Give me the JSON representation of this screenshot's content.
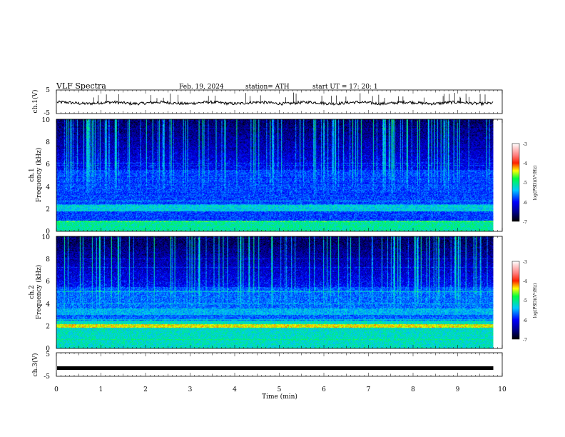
{
  "header": {
    "title": "VLF  Spectra",
    "date": "Feb. 19, 2024",
    "station": "station= ATH",
    "start": "start  UT  =    17: 20: 1"
  },
  "chart_data": [
    {
      "type": "line",
      "ylabel": "ch.1(V)",
      "ylim": [
        -5,
        5
      ],
      "y_ticks": [
        "5",
        "-5"
      ],
      "xlim": [
        0,
        10
      ],
      "signal_level": -0.5,
      "trace_end_min": 9.8,
      "color": "#000000"
    },
    {
      "type": "heatmap",
      "ylabel": "ch.1\nFrequency (kHz)",
      "ylabel_lines": [
        "ch.1",
        "Frequency (kHz)"
      ],
      "ylim": [
        0,
        10
      ],
      "y_ticks": [
        "0",
        "2",
        "4",
        "6",
        "8",
        "10"
      ],
      "xlim": [
        0,
        10
      ],
      "trace_end_min": 9.8,
      "colorbar": {
        "label": "log(PSD)(V²/Hz)",
        "range": [
          -7,
          -3
        ],
        "ticks": [
          "-3",
          "-4",
          "-5",
          "-6",
          "-7"
        ]
      }
    },
    {
      "type": "heatmap",
      "ylabel": "ch.2\nFrequency (kHz)",
      "ylabel_lines": [
        "ch.2",
        "Frequency (kHz)"
      ],
      "ylim": [
        0,
        10
      ],
      "y_ticks": [
        "0",
        "2",
        "4",
        "6",
        "8",
        "10"
      ],
      "xlim": [
        0,
        10
      ],
      "trace_end_min": 9.8,
      "colorbar": {
        "label": "log(PSD)(V²/Hz)",
        "range": [
          -7,
          -3
        ],
        "ticks": [
          "-3",
          "-4",
          "-5",
          "-6",
          "-7"
        ]
      }
    },
    {
      "type": "line",
      "ylabel": "ch.3(V)",
      "ylim": [
        -5,
        5
      ],
      "y_ticks": [
        "5",
        "-5"
      ],
      "xlim": [
        0,
        10
      ],
      "signal_level": -1.5,
      "trace_end_min": 9.8,
      "color": "#000000"
    }
  ],
  "x_axis": {
    "label": "Time  (min)",
    "ticks": [
      "0",
      "1",
      "2",
      "3",
      "4",
      "5",
      "6",
      "7",
      "8",
      "9",
      "10"
    ]
  }
}
